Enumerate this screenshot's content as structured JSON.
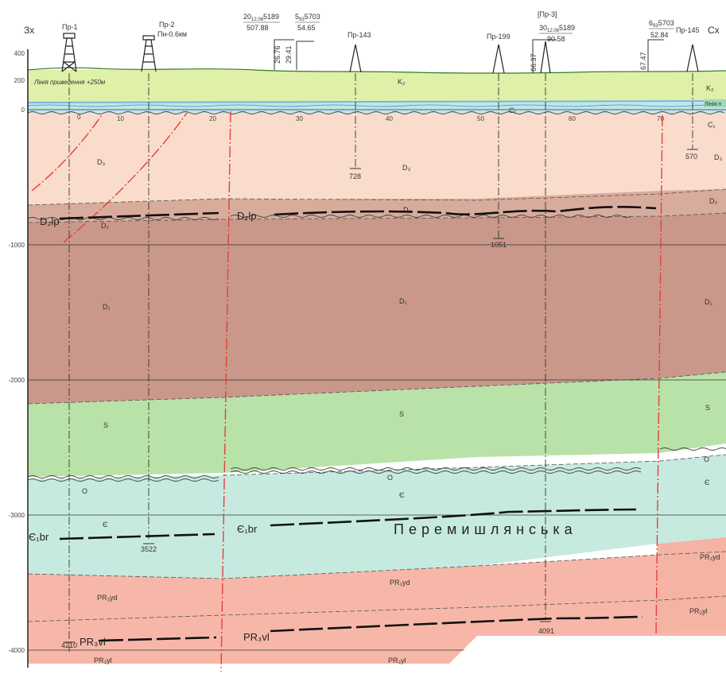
{
  "header": {
    "west": "Зх",
    "east": "Сх"
  },
  "wells": {
    "pr1": {
      "name": "Пр-1",
      "depth": "4210"
    },
    "pr2": {
      "name": "Пр-2",
      "sub": "Пн-0.6км",
      "depth": "3522"
    },
    "pr143": {
      "name": "Пр-143",
      "depth": "728"
    },
    "pr199": {
      "name": "Пр-199",
      "depth": "1051"
    },
    "pr3": {
      "name": "[Пр-3]",
      "depth": "4091"
    },
    "pr145": {
      "name": "Пр-145",
      "depth": "570"
    }
  },
  "profiles": {
    "p1": {
      "top": "20",
      "sub": "12.06",
      "num": "5189",
      "bottom": "507.88"
    },
    "p2": {
      "top": "5",
      "sub": "93",
      "num": "5703",
      "bottom": "54.65"
    },
    "p3": {
      "top": "30",
      "sub": "12.06",
      "num": "5189",
      "bottom": "90.58"
    },
    "p4": {
      "top": "6",
      "sub": "93",
      "num": "5703",
      "bottom": "52.84"
    },
    "v1": "26.76",
    "v2": "29.41",
    "v3": "66.37",
    "v4": "67.47"
  },
  "depth_axis": [
    "400",
    "200",
    "0",
    "-1000",
    "-2000",
    "-3000",
    "-4000"
  ],
  "distance_axis": [
    "0",
    "10",
    "20",
    "30",
    "40",
    "50",
    "60",
    "70"
  ],
  "notes": {
    "reduction_line": "Лінія приведення +250м",
    "right_reduction": "Лінія п"
  },
  "layers": {
    "k2": "K₂",
    "c1": "C₁",
    "d3": "D₃",
    "d2": "D₂",
    "d1": "D₁",
    "s": "S",
    "o": "O",
    "e": "Є",
    "pr3": "PR₃yd",
    "pr3b": "PR₃yl"
  },
  "horizons": {
    "d2lp": "D₂lp",
    "e1br": "Є₁br",
    "pr3vl": "PR₃vl"
  },
  "structure_name": "Перемишлянська",
  "colors": {
    "k2": "#dff0a8",
    "c1": "#bfe6ea",
    "d3": "#fadccd",
    "d2": "#d9ab9b",
    "d1": "#c9988a",
    "s": "#b9e2a8",
    "o": "#c6eae0",
    "e": "#c6eae0",
    "pr": "#f7b7a8",
    "fault": "#e2413a"
  }
}
